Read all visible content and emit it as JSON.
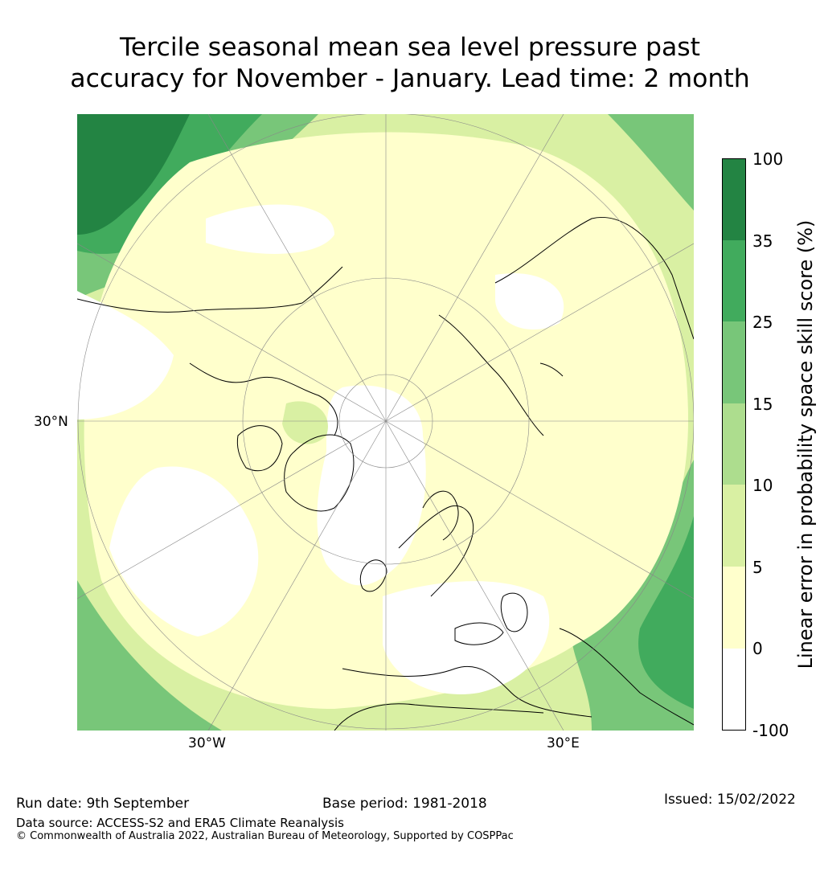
{
  "title": {
    "line1": "Tercile seasonal mean sea level pressure past",
    "line2": "accuracy for November - January. Lead time: 2 month"
  },
  "map": {
    "projection": "north-polar-stereographic",
    "graticule_labels": [
      "30°N",
      "30°W",
      "30°E"
    ]
  },
  "colorbar": {
    "title": "Linear error in probability space skill score (%)",
    "ticks": [
      "100",
      "35",
      "25",
      "15",
      "10",
      "5",
      "0",
      "-100"
    ],
    "colors": [
      "#238443",
      "#41ab5d",
      "#78c679",
      "#addd8e",
      "#d9f0a3",
      "#ffffcc",
      "#ffffff"
    ]
  },
  "footer": {
    "run_date": "Run date: 9th September",
    "base_period": "Base period: 1981-2018",
    "issued": "Issued: 15/02/2022",
    "data_source": "Data source: ACCESS-S2 and ERA5 Climate Reanalysis",
    "copyright": "© Commonwealth of Australia 2022, Australian Bureau of Meteorology, Supported by COSPPac"
  }
}
